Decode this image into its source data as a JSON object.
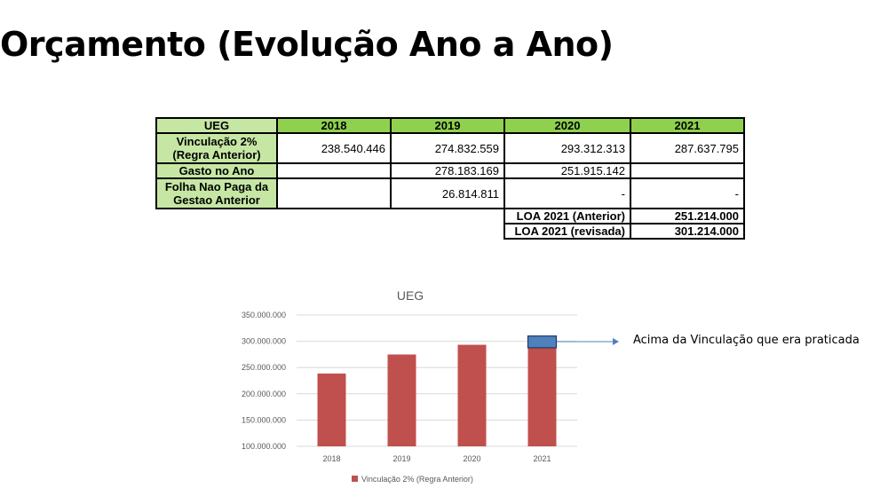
{
  "title": "Orçamento (Evolução Ano a Ano)",
  "table": {
    "headers": [
      "UEG",
      "2018",
      "2019",
      "2020",
      "2021"
    ],
    "rows": [
      {
        "label": "Vinculação 2% (Regra Anterior)",
        "values": [
          "238.540.446",
          "274.832.559",
          "293.312.313",
          "287.637.795"
        ]
      },
      {
        "label": "Gasto no Ano",
        "values": [
          "",
          "278.183.169",
          "251.915.142",
          ""
        ]
      },
      {
        "label": "Folha Nao Paga da Gestao Anterior",
        "values": [
          "",
          "26.814.811",
          "-",
          "-"
        ]
      }
    ],
    "loa": [
      {
        "label": "LOA 2021 (Anterior)",
        "value": "251.214.000"
      },
      {
        "label": "LOA 2021 (revisada)",
        "value": "301.214.000"
      }
    ]
  },
  "chart_data": {
    "type": "bar",
    "title": "UEG",
    "categories": [
      "2018",
      "2019",
      "2020",
      "2021"
    ],
    "series": [
      {
        "name": "Vinculação 2% (Regra Anterior)",
        "values": [
          238540446,
          274832559,
          293312313,
          287637795
        ],
        "color": "#c0504d"
      }
    ],
    "highlight": {
      "category": "2021",
      "from": 287637795,
      "to": 310000000,
      "color": "#4f81bd"
    },
    "ylim": [
      100000000,
      350000000
    ],
    "yticks": [
      100000000,
      150000000,
      200000000,
      250000000,
      300000000,
      350000000
    ],
    "ytick_labels": [
      "100.000.000",
      "150.000.000",
      "200.000.000",
      "250.000.000",
      "300.000.000",
      "350.000.000"
    ],
    "grid": true,
    "legend": "bottom",
    "annotation": "Acima da Vinculação que era praticada"
  }
}
